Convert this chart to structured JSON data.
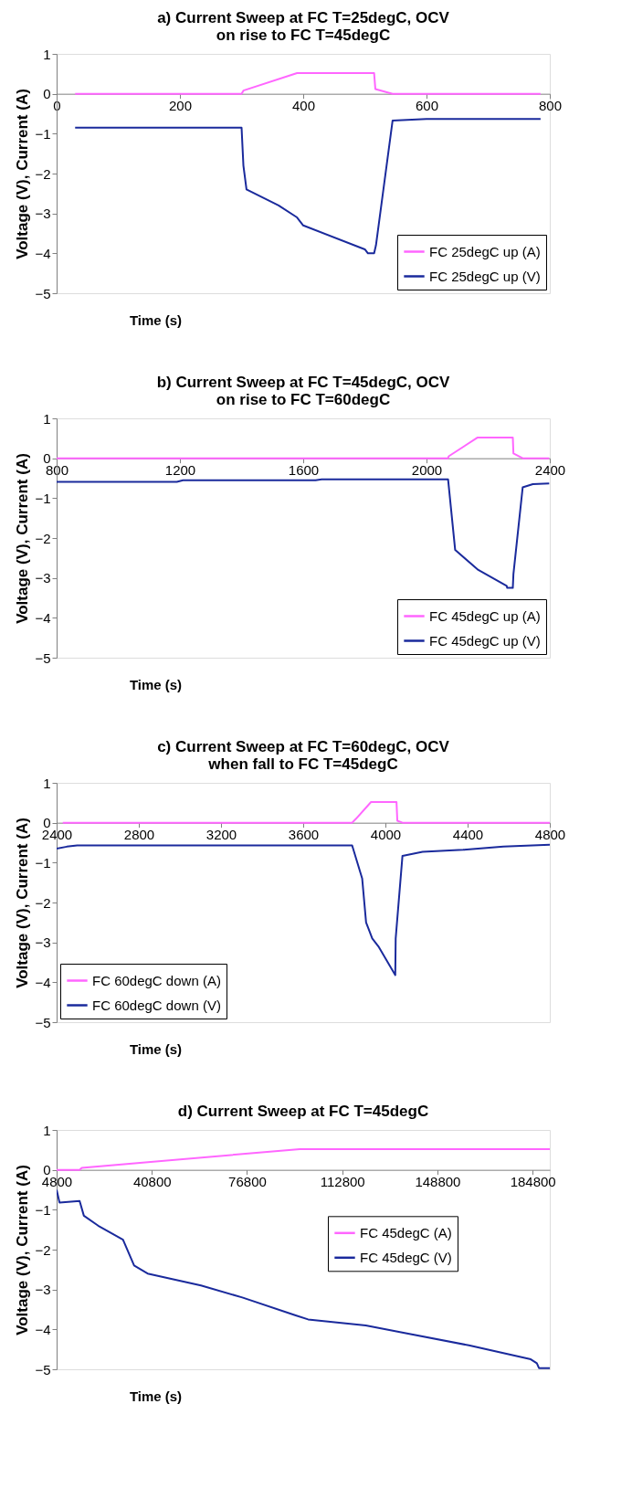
{
  "chart_data": [
    {
      "type": "line",
      "title": "a) Current Sweep at FC T=25degC, OCV\non rise to FC T=45degC",
      "xlabel": "Time (s)",
      "ylabel": "Voltage (V), Current (A)",
      "xlim": [
        0,
        800
      ],
      "xticks": [
        0,
        200,
        400,
        600,
        800
      ],
      "ylim": [
        -5,
        1
      ],
      "yticks": [
        -5,
        -4,
        -3,
        -2,
        -1,
        0,
        1
      ],
      "grid": false,
      "legend": "bottom right",
      "marker": "none",
      "line_style": "solid",
      "series": [
        {
          "name": "FC 25degC up (A)",
          "color": "#ff66ff",
          "x": [
            30,
            300,
            303,
            390,
            515,
            517,
            545,
            785
          ],
          "values": [
            0,
            0,
            0.08,
            0.52,
            0.52,
            0.12,
            0,
            0
          ]
        },
        {
          "name": "FC 25degC up (V)",
          "color": "#1a2a9c",
          "x": [
            30,
            300,
            303,
            308,
            360,
            390,
            400,
            500,
            505,
            515,
            518,
            545,
            600,
            785
          ],
          "values": [
            -0.85,
            -0.85,
            -1.8,
            -2.4,
            -2.8,
            -3.1,
            -3.3,
            -3.9,
            -4.0,
            -4.0,
            -3.8,
            -0.67,
            -0.63,
            -0.63
          ]
        }
      ]
    },
    {
      "type": "line",
      "title": "b) Current Sweep at FC T=45degC, OCV\non rise to FC T=60degC",
      "xlabel": "Time (s)",
      "ylabel": "Voltage (V), Current (A)",
      "xlim": [
        800,
        2400
      ],
      "xticks": [
        800,
        1200,
        1600,
        2000,
        2400
      ],
      "ylim": [
        -5,
        1
      ],
      "yticks": [
        -5,
        -4,
        -3,
        -2,
        -1,
        0,
        1
      ],
      "grid": false,
      "legend": "bottom right",
      "marker": "none",
      "line_style": "solid",
      "series": [
        {
          "name": "FC 45degC up (A)",
          "color": "#ff66ff",
          "x": [
            800,
            2070,
            2072,
            2166,
            2280,
            2282,
            2312,
            2398
          ],
          "values": [
            0,
            0,
            0.05,
            0.52,
            0.52,
            0.12,
            0,
            0
          ]
        },
        {
          "name": "FC 45degC up (V)",
          "color": "#1a2a9c",
          "x": [
            800,
            1190,
            1210,
            1640,
            1660,
            2070,
            2093,
            2168,
            2260,
            2262,
            2280,
            2282,
            2312,
            2345,
            2398
          ],
          "values": [
            -0.59,
            -0.59,
            -0.55,
            -0.55,
            -0.53,
            -0.53,
            -2.3,
            -2.8,
            -3.2,
            -3.25,
            -3.25,
            -2.9,
            -0.73,
            -0.65,
            -0.63
          ]
        }
      ]
    },
    {
      "type": "line",
      "title": "c) Current Sweep at FC T=60degC, OCV\nwhen fall to FC T=45degC",
      "xlabel": "Time (s)",
      "ylabel": "Voltage (V), Current (A)",
      "xlim": [
        2400,
        4800
      ],
      "xticks": [
        2400,
        2800,
        3200,
        3600,
        4000,
        4400,
        4800
      ],
      "ylim": [
        -5,
        1
      ],
      "yticks": [
        -5,
        -4,
        -3,
        -2,
        -1,
        0,
        1
      ],
      "grid": false,
      "legend": "bottom left",
      "marker": "none",
      "line_style": "solid",
      "series": [
        {
          "name": "FC 60degC down (A)",
          "color": "#ff66ff",
          "x": [
            2430,
            3838,
            3857,
            3930,
            4054,
            4058,
            4083,
            4800
          ],
          "values": [
            0,
            0,
            0.1,
            0.52,
            0.52,
            0.05,
            0,
            0
          ]
        },
        {
          "name": "FC 60degC down (V)",
          "color": "#1a2a9c",
          "x": [
            2400,
            2450,
            2500,
            3838,
            3887,
            3906,
            3936,
            3966,
            4048,
            4050,
            4083,
            4181,
            4378,
            4574,
            4800
          ],
          "values": [
            -0.65,
            -0.6,
            -0.57,
            -0.57,
            -1.4,
            -2.5,
            -2.9,
            -3.1,
            -3.82,
            -2.9,
            -0.83,
            -0.73,
            -0.68,
            -0.6,
            -0.55
          ]
        }
      ]
    },
    {
      "type": "line",
      "title": "d) Current Sweep at FC T=45degC",
      "xlabel": "Time (s)",
      "ylabel": "Voltage (V), Current (A)",
      "xlim": [
        4800,
        191300
      ],
      "xticks": [
        4800,
        40800,
        76800,
        112800,
        148800,
        184800
      ],
      "ylim": [
        -5,
        1
      ],
      "yticks": [
        -5,
        -4,
        -3,
        -2,
        -1,
        0,
        1
      ],
      "grid": false,
      "legend": "right",
      "marker": "none",
      "line_style": "solid",
      "series": [
        {
          "name": "FC 45degC (A)",
          "color": "#ff66ff",
          "x": [
            4800,
            13500,
            14300,
            96800,
            191300
          ],
          "values": [
            0,
            0,
            0.05,
            0.52,
            0.52
          ]
        },
        {
          "name": "FC 45degC (V)",
          "color": "#1a2a9c",
          "x": [
            4800,
            5900,
            13500,
            15100,
            20500,
            29900,
            34100,
            39200,
            59400,
            75000,
            95200,
            99900,
            121700,
            137300,
            160700,
            184100,
            186400,
            187200,
            191300
          ],
          "values": [
            -0.5,
            -0.82,
            -0.78,
            -1.15,
            -1.4,
            -1.75,
            -2.4,
            -2.6,
            -2.9,
            -3.2,
            -3.65,
            -3.75,
            -3.9,
            -4.1,
            -4.4,
            -4.75,
            -4.85,
            -4.97,
            -4.97
          ]
        }
      ]
    }
  ]
}
